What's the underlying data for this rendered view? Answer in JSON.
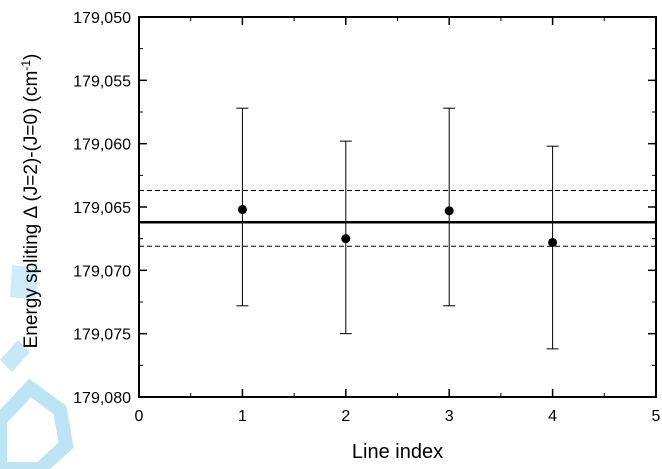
{
  "chart_data": {
    "type": "scatter",
    "xlabel": "Line index",
    "ylabel_main": "Energy spliting ",
    "ylabel_delta": "Δ",
    "ylabel_mid": " (J=2)-(J=0) (cm",
    "ylabel_sup": "-1",
    "ylabel_close": ")",
    "xlim": [
      0,
      5
    ],
    "ylim": [
      179.08,
      179.05
    ],
    "y_reversed": true,
    "xticks": [
      0,
      1,
      2,
      3,
      4,
      5
    ],
    "xtick_labels": [
      "0",
      "1",
      "2",
      "3",
      "4",
      "5"
    ],
    "yticks": [
      179.05,
      179.055,
      179.06,
      179.065,
      179.07,
      179.075,
      179.08
    ],
    "ytick_labels": [
      "179,050",
      "179,055",
      "179,060",
      "179,065",
      "179,070",
      "179,075",
      "179,080"
    ],
    "grid": false,
    "points": [
      {
        "x": 1,
        "y": 179.0652,
        "ymin": 179.0572,
        "ymax": 179.0728
      },
      {
        "x": 2,
        "y": 179.0675,
        "ymin": 179.0598,
        "ymax": 179.075
      },
      {
        "x": 3,
        "y": 179.0653,
        "ymin": 179.0572,
        "ymax": 179.0728
      },
      {
        "x": 4,
        "y": 179.0678,
        "ymin": 179.0602,
        "ymax": 179.0762
      }
    ],
    "mean_line": 179.0662,
    "band_lines": [
      179.0637,
      179.0681
    ],
    "colors": {
      "marker": "#000000",
      "axis": "#000000",
      "watermark": "#2aa9e0"
    }
  }
}
